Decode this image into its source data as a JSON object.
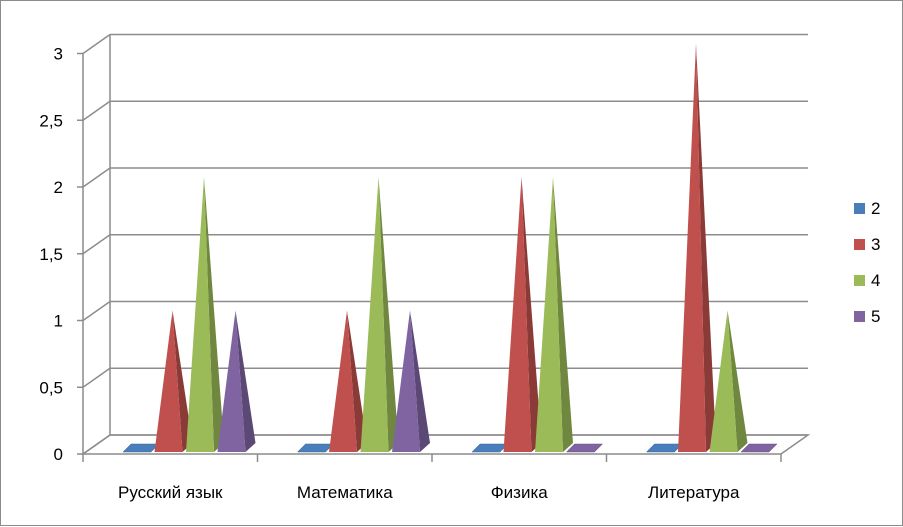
{
  "chart_data": {
    "type": "bar",
    "bar_shape": "pyramid-3d",
    "categories": [
      "Русский язык",
      "Математика",
      "Физика",
      "Литература"
    ],
    "series": [
      {
        "name": "2",
        "values": [
          0,
          0,
          0,
          0
        ],
        "color": "#4a7ebb"
      },
      {
        "name": "3",
        "values": [
          1,
          1,
          2,
          3
        ],
        "color": "#c0504d"
      },
      {
        "name": "4",
        "values": [
          2,
          2,
          2,
          1
        ],
        "color": "#9bbb59"
      },
      {
        "name": "5",
        "values": [
          1,
          1,
          0,
          0
        ],
        "color": "#8064a2"
      }
    ],
    "y_ticks": [
      "0",
      "0,5",
      "1",
      "1,5",
      "2",
      "2,5",
      "3"
    ],
    "ylim": [
      0,
      3
    ],
    "title": "",
    "xlabel": "",
    "ylabel": "",
    "grid": true,
    "legend_position": "right"
  }
}
